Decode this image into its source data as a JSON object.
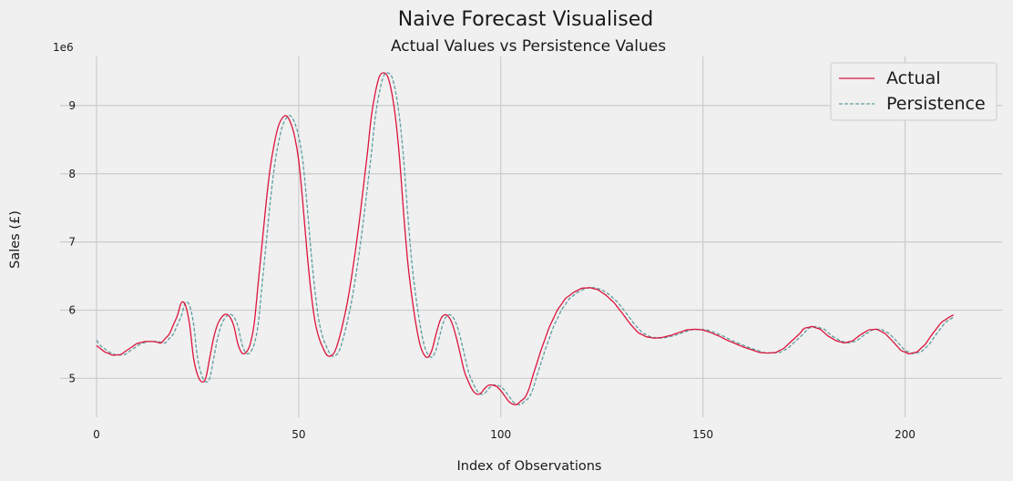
{
  "chart_data": {
    "type": "line",
    "title": "Naive Forecast Visualised",
    "subtitle": "Actual Values vs Persistence Values",
    "xlabel": "Index of Observations",
    "ylabel": "Sales (£)",
    "y_offset_label": "1e6",
    "y_multiplier": 1000000,
    "xlim": [
      -9,
      224
    ],
    "ylim": [
      4.43,
      9.72
    ],
    "x_ticks": [
      0,
      50,
      100,
      150,
      200
    ],
    "y_ticks": [
      5,
      6,
      7,
      8,
      9
    ],
    "grid": true,
    "legend_position": "top-right",
    "colors": {
      "background": "#f0f0f0",
      "grid": "#cbcbcb",
      "actual": "#dc143c",
      "persistence": "#5f9ea0"
    },
    "actual_keypoints": [
      [
        0,
        5.48
      ],
      [
        2,
        5.39
      ],
      [
        4,
        5.34
      ],
      [
        6,
        5.35
      ],
      [
        8,
        5.43
      ],
      [
        10,
        5.51
      ],
      [
        12,
        5.54
      ],
      [
        14,
        5.54
      ],
      [
        16,
        5.52
      ],
      [
        18,
        5.65
      ],
      [
        20,
        5.92
      ],
      [
        21,
        6.11
      ],
      [
        22,
        6.07
      ],
      [
        23,
        5.8
      ],
      [
        24,
        5.3
      ],
      [
        25,
        5.05
      ],
      [
        26,
        4.95
      ],
      [
        27,
        5.0
      ],
      [
        28,
        5.3
      ],
      [
        29,
        5.6
      ],
      [
        30,
        5.8
      ],
      [
        31,
        5.9
      ],
      [
        32,
        5.94
      ],
      [
        33,
        5.9
      ],
      [
        34,
        5.76
      ],
      [
        35,
        5.5
      ],
      [
        36,
        5.37
      ],
      [
        37,
        5.38
      ],
      [
        38,
        5.5
      ],
      [
        39,
        5.8
      ],
      [
        40,
        6.4
      ],
      [
        41,
        7.0
      ],
      [
        42,
        7.6
      ],
      [
        43,
        8.1
      ],
      [
        44,
        8.45
      ],
      [
        45,
        8.7
      ],
      [
        46,
        8.82
      ],
      [
        47,
        8.85
      ],
      [
        48,
        8.75
      ],
      [
        49,
        8.55
      ],
      [
        50,
        8.2
      ],
      [
        51,
        7.6
      ],
      [
        52,
        6.9
      ],
      [
        53,
        6.3
      ],
      [
        54,
        5.85
      ],
      [
        55,
        5.6
      ],
      [
        56,
        5.45
      ],
      [
        57,
        5.34
      ],
      [
        58,
        5.33
      ],
      [
        59,
        5.4
      ],
      [
        60,
        5.58
      ],
      [
        61,
        5.82
      ],
      [
        62,
        6.1
      ],
      [
        63,
        6.45
      ],
      [
        64,
        6.85
      ],
      [
        65,
        7.3
      ],
      [
        66,
        7.8
      ],
      [
        67,
        8.3
      ],
      [
        68,
        8.85
      ],
      [
        69,
        9.2
      ],
      [
        70,
        9.43
      ],
      [
        71,
        9.48
      ],
      [
        72,
        9.43
      ],
      [
        73,
        9.2
      ],
      [
        74,
        8.8
      ],
      [
        75,
        8.2
      ],
      [
        76,
        7.4
      ],
      [
        77,
        6.7
      ],
      [
        78,
        6.2
      ],
      [
        79,
        5.8
      ],
      [
        80,
        5.5
      ],
      [
        81,
        5.35
      ],
      [
        82,
        5.31
      ],
      [
        83,
        5.42
      ],
      [
        84,
        5.65
      ],
      [
        85,
        5.85
      ],
      [
        86,
        5.93
      ],
      [
        87,
        5.91
      ],
      [
        88,
        5.8
      ],
      [
        89,
        5.6
      ],
      [
        90,
        5.35
      ],
      [
        91,
        5.1
      ],
      [
        92,
        4.95
      ],
      [
        93,
        4.83
      ],
      [
        94,
        4.77
      ],
      [
        95,
        4.78
      ],
      [
        96,
        4.85
      ],
      [
        97,
        4.9
      ],
      [
        98,
        4.9
      ],
      [
        99,
        4.88
      ],
      [
        100,
        4.82
      ],
      [
        102,
        4.66
      ],
      [
        103,
        4.62
      ],
      [
        104,
        4.62
      ],
      [
        106,
        4.72
      ],
      [
        107,
        4.85
      ],
      [
        108,
        5.05
      ],
      [
        110,
        5.42
      ],
      [
        112,
        5.75
      ],
      [
        114,
        6.0
      ],
      [
        116,
        6.17
      ],
      [
        118,
        6.26
      ],
      [
        120,
        6.32
      ],
      [
        122,
        6.33
      ],
      [
        124,
        6.3
      ],
      [
        126,
        6.22
      ],
      [
        128,
        6.11
      ],
      [
        130,
        5.96
      ],
      [
        132,
        5.8
      ],
      [
        134,
        5.67
      ],
      [
        136,
        5.61
      ],
      [
        138,
        5.59
      ],
      [
        140,
        5.6
      ],
      [
        142,
        5.63
      ],
      [
        144,
        5.67
      ],
      [
        146,
        5.71
      ],
      [
        148,
        5.72
      ],
      [
        150,
        5.71
      ],
      [
        152,
        5.67
      ],
      [
        154,
        5.62
      ],
      [
        156,
        5.56
      ],
      [
        158,
        5.51
      ],
      [
        160,
        5.46
      ],
      [
        162,
        5.42
      ],
      [
        164,
        5.38
      ],
      [
        166,
        5.37
      ],
      [
        168,
        5.38
      ],
      [
        170,
        5.44
      ],
      [
        172,
        5.55
      ],
      [
        174,
        5.66
      ],
      [
        175,
        5.73
      ],
      [
        177,
        5.76
      ],
      [
        179,
        5.72
      ],
      [
        181,
        5.62
      ],
      [
        183,
        5.55
      ],
      [
        185,
        5.52
      ],
      [
        187,
        5.55
      ],
      [
        189,
        5.64
      ],
      [
        191,
        5.71
      ],
      [
        193,
        5.72
      ],
      [
        195,
        5.66
      ],
      [
        197,
        5.54
      ],
      [
        199,
        5.41
      ],
      [
        201,
        5.36
      ],
      [
        203,
        5.39
      ],
      [
        205,
        5.5
      ],
      [
        207,
        5.67
      ],
      [
        209,
        5.82
      ],
      [
        211,
        5.9
      ],
      [
        212,
        5.93
      ]
    ],
    "persistence_shift": 1,
    "persistence_start_value": 5.56,
    "series": [
      {
        "name": "Actual",
        "style": "solid",
        "color": "#dc143c"
      },
      {
        "name": "Persistence",
        "style": "dashed",
        "color": "#5f9ea0"
      }
    ]
  }
}
